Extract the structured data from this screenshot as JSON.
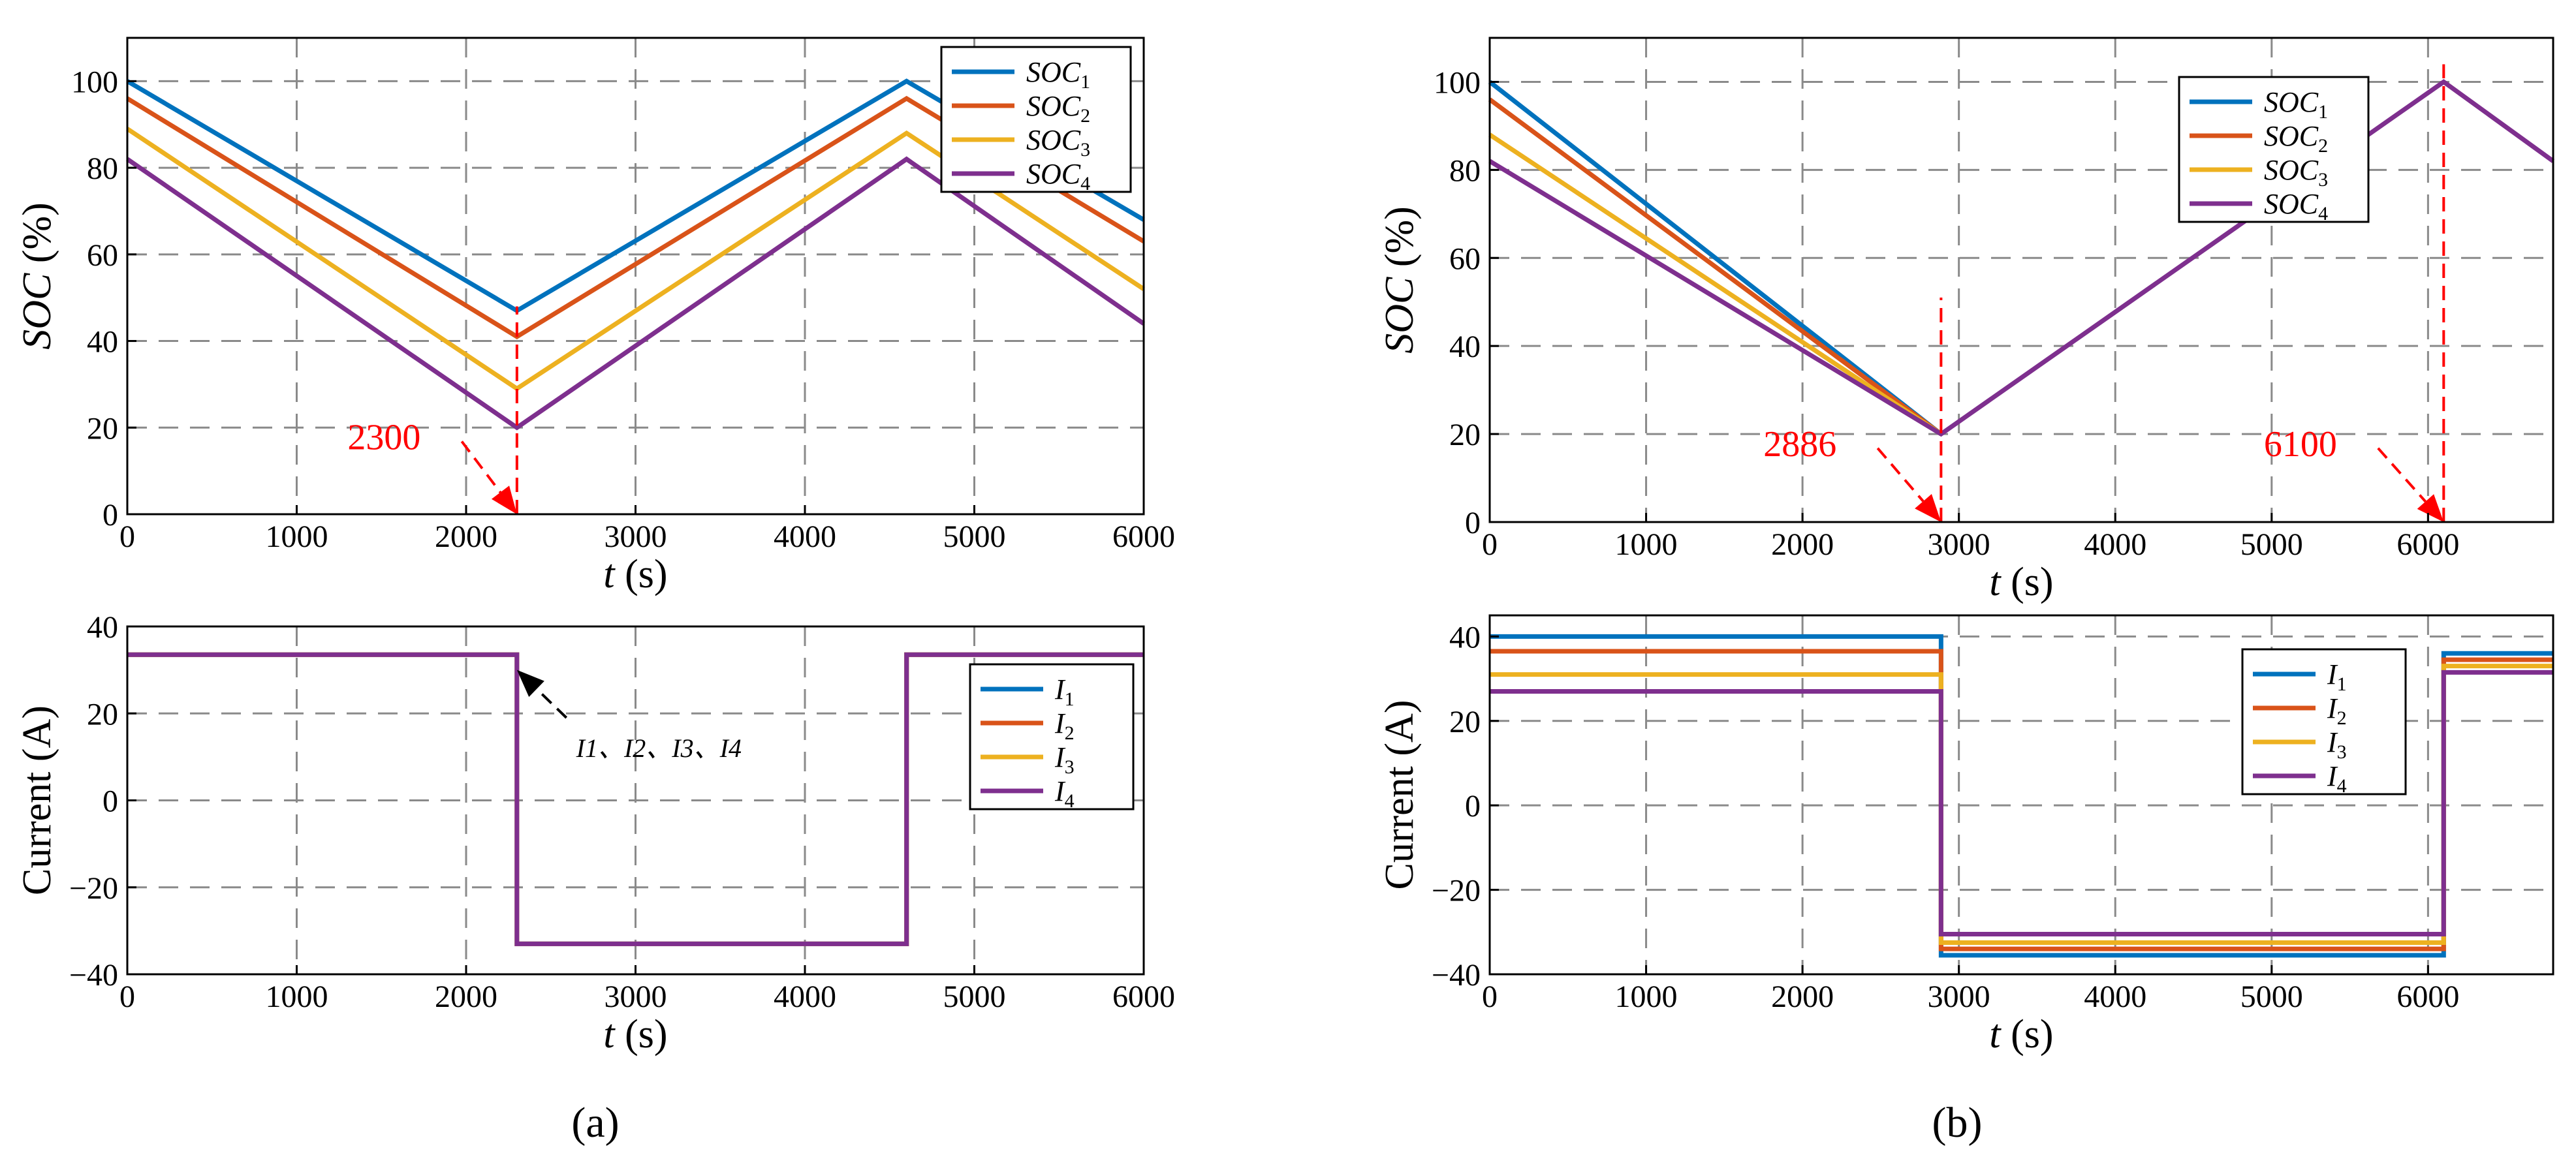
{
  "chart_data": [
    {
      "id": "a_soc",
      "type": "line",
      "xlabel": "t (s)",
      "ylabel": "SOC (%)",
      "xlim": [
        0,
        6000
      ],
      "ylim": [
        0,
        110
      ],
      "xticks": [
        0,
        1000,
        2000,
        3000,
        4000,
        5000,
        6000
      ],
      "yticks": [
        0,
        20,
        40,
        60,
        80,
        100
      ],
      "legend_pos": "top-right",
      "series": [
        {
          "name": "SOC1",
          "label_main": "SOC",
          "label_sub": "1",
          "color": "#0072BD",
          "x": [
            0,
            2300,
            4600,
            6000
          ],
          "y": [
            100,
            47,
            100,
            68
          ]
        },
        {
          "name": "SOC2",
          "label_main": "SOC",
          "label_sub": "2",
          "color": "#D95319",
          "x": [
            0,
            2300,
            4600,
            6000
          ],
          "y": [
            96,
            41,
            96,
            63
          ]
        },
        {
          "name": "SOC3",
          "label_main": "SOC",
          "label_sub": "3",
          "color": "#EDB120",
          "x": [
            0,
            2300,
            4600,
            6000
          ],
          "y": [
            89,
            29,
            88,
            52
          ]
        },
        {
          "name": "SOC4",
          "label_main": "SOC",
          "label_sub": "4",
          "color": "#7E2F8E",
          "x": [
            0,
            2300,
            4600,
            6000
          ],
          "y": [
            82,
            20,
            82,
            44
          ]
        }
      ],
      "vlines": [
        {
          "x": 2300,
          "y0": 0,
          "y1": 48,
          "color": "#FF0000"
        }
      ],
      "annotations": [
        {
          "text": "2300",
          "color": "#FF0000",
          "tx": 1300,
          "ty": 15,
          "ax": 2300,
          "ay": 0
        }
      ]
    },
    {
      "id": "a_cur",
      "type": "line",
      "xlabel": "t (s)",
      "ylabel": "Current (A)",
      "xlim": [
        0,
        6000
      ],
      "ylim": [
        -40,
        40
      ],
      "xticks": [
        0,
        1000,
        2000,
        3000,
        4000,
        5000,
        6000
      ],
      "yticks": [
        -40,
        -20,
        0,
        20,
        40
      ],
      "legend_pos": "right",
      "series": [
        {
          "name": "I1",
          "label_main": "I",
          "label_sub": "1",
          "color": "#0072BD",
          "x": [
            0,
            2300,
            2300,
            4600,
            4600,
            6000
          ],
          "y": [
            33.5,
            33.5,
            -33,
            -33,
            33.5,
            33.5
          ]
        },
        {
          "name": "I2",
          "label_main": "I",
          "label_sub": "2",
          "color": "#D95319",
          "x": [
            0,
            2300,
            2300,
            4600,
            4600,
            6000
          ],
          "y": [
            33.5,
            33.5,
            -33,
            -33,
            33.5,
            33.5
          ]
        },
        {
          "name": "I3",
          "label_main": "I",
          "label_sub": "3",
          "color": "#EDB120",
          "x": [
            0,
            2300,
            2300,
            4600,
            4600,
            6000
          ],
          "y": [
            33.5,
            33.5,
            -33,
            -33,
            33.5,
            33.5
          ]
        },
        {
          "name": "I4",
          "label_main": "I",
          "label_sub": "4",
          "color": "#7E2F8E",
          "x": [
            0,
            2300,
            2300,
            4600,
            4600,
            6000
          ],
          "y": [
            33.5,
            33.5,
            -33,
            -33,
            33.5,
            33.5
          ]
        }
      ],
      "annotations": [
        {
          "text": "I1、I2、I3、I4",
          "color": "#000000",
          "tx": 2650,
          "ty": 10,
          "ax": 2300,
          "ay": 30
        }
      ]
    },
    {
      "id": "b_soc",
      "type": "line",
      "xlabel": "t (s)",
      "ylabel": "SOC (%)",
      "xlim": [
        0,
        6800
      ],
      "ylim": [
        0,
        110
      ],
      "xticks": [
        0,
        1000,
        2000,
        3000,
        4000,
        5000,
        6000
      ],
      "yticks": [
        0,
        20,
        40,
        60,
        80,
        100
      ],
      "legend_pos": "top-right",
      "series": [
        {
          "name": "SOC1",
          "label_main": "SOC",
          "label_sub": "1",
          "color": "#0072BD",
          "x": [
            0,
            2886
          ],
          "y": [
            100,
            20
          ]
        },
        {
          "name": "SOC2",
          "label_main": "SOC",
          "label_sub": "2",
          "color": "#D95319",
          "x": [
            0,
            2886
          ],
          "y": [
            96,
            20
          ]
        },
        {
          "name": "SOC3",
          "label_main": "SOC",
          "label_sub": "3",
          "color": "#EDB120",
          "x": [
            0,
            2886
          ],
          "y": [
            88,
            20
          ]
        },
        {
          "name": "SOC4",
          "label_main": "SOC",
          "label_sub": "4",
          "color": "#7E2F8E",
          "x": [
            0,
            2886,
            6100,
            6800
          ],
          "y": [
            82,
            20,
            100,
            82
          ]
        }
      ],
      "vlines": [
        {
          "x": 2886,
          "y0": 0,
          "y1": 51,
          "color": "#FF0000"
        },
        {
          "x": 6100,
          "y0": 0,
          "y1": 104,
          "color": "#FF0000"
        }
      ],
      "annotations": [
        {
          "text": "2886",
          "color": "#FF0000",
          "tx": 1750,
          "ty": 15,
          "ax": 2886,
          "ay": 0
        },
        {
          "text": "6100",
          "color": "#FF0000",
          "tx": 4950,
          "ty": 15,
          "ax": 6100,
          "ay": 0
        }
      ]
    },
    {
      "id": "b_cur",
      "type": "line",
      "xlabel": "t (s)",
      "ylabel": "Current (A)",
      "xlim": [
        0,
        6800
      ],
      "ylim": [
        -40,
        45
      ],
      "xticks": [
        0,
        1000,
        2000,
        3000,
        4000,
        5000,
        6000
      ],
      "yticks": [
        -40,
        -20,
        0,
        20,
        40
      ],
      "legend_pos": "right",
      "series": [
        {
          "name": "I1",
          "label_main": "I",
          "label_sub": "1",
          "color": "#0072BD",
          "x": [
            0,
            2886,
            2886,
            6100,
            6100,
            6800
          ],
          "y": [
            40,
            40,
            -35.5,
            -35.5,
            36,
            36
          ]
        },
        {
          "name": "I2",
          "label_main": "I",
          "label_sub": "2",
          "color": "#D95319",
          "x": [
            0,
            2886,
            2886,
            6100,
            6100,
            6800
          ],
          "y": [
            36.5,
            36.5,
            -34,
            -34,
            34.5,
            34.5
          ]
        },
        {
          "name": "I3",
          "label_main": "I",
          "label_sub": "3",
          "color": "#EDB120",
          "x": [
            0,
            2886,
            2886,
            6100,
            6100,
            6800
          ],
          "y": [
            31,
            31,
            -32.5,
            -32.5,
            33,
            33
          ]
        },
        {
          "name": "I4",
          "label_main": "I",
          "label_sub": "4",
          "color": "#7E2F8E",
          "x": [
            0,
            2886,
            2886,
            6100,
            6100,
            6800
          ],
          "y": [
            27,
            27,
            -30.5,
            -30.5,
            31.5,
            31.5
          ]
        }
      ]
    }
  ],
  "captions": [
    "(a)",
    "(b)"
  ]
}
